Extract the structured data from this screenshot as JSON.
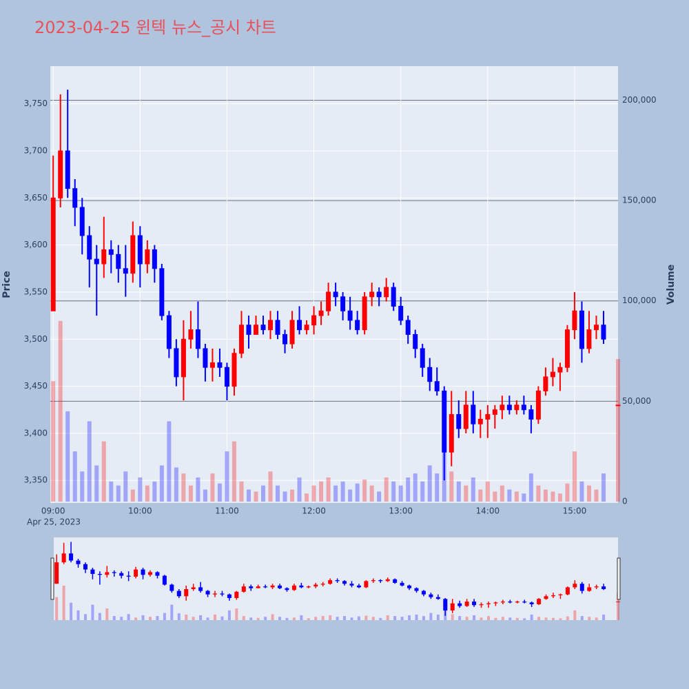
{
  "chart_data": {
    "type": "candlestick",
    "title": "2023-04-25 윈텍 뉴스_공시 차트",
    "x": [
      "09:00",
      "09:05",
      "09:10",
      "09:15",
      "09:20",
      "09:25",
      "09:30",
      "09:35",
      "09:40",
      "09:45",
      "09:50",
      "09:55",
      "10:00",
      "10:05",
      "10:10",
      "10:15",
      "10:20",
      "10:25",
      "10:30",
      "10:35",
      "10:40",
      "10:45",
      "10:50",
      "10:55",
      "11:00",
      "11:05",
      "11:10",
      "11:15",
      "11:20",
      "11:25",
      "11:30",
      "11:35",
      "11:40",
      "11:45",
      "11:50",
      "11:55",
      "12:00",
      "12:05",
      "12:10",
      "12:15",
      "12:20",
      "12:25",
      "12:30",
      "12:35",
      "12:40",
      "12:45",
      "12:50",
      "12:55",
      "13:00",
      "13:05",
      "13:10",
      "13:15",
      "13:20",
      "13:25",
      "13:30",
      "13:35",
      "13:40",
      "13:45",
      "13:50",
      "13:55",
      "14:00",
      "14:05",
      "14:10",
      "14:15",
      "14:20",
      "14:25",
      "14:30",
      "14:35",
      "14:40",
      "14:45",
      "14:50",
      "14:55",
      "15:00",
      "15:05",
      "15:10",
      "15:15",
      "15:20",
      "15:30"
    ],
    "open": [
      3530,
      3650,
      3700,
      3660,
      3640,
      3610,
      3585,
      3580,
      3595,
      3590,
      3575,
      3570,
      3610,
      3580,
      3595,
      3575,
      3525,
      3490,
      3460,
      3500,
      3510,
      3490,
      3470,
      3475,
      3470,
      3450,
      3485,
      3515,
      3505,
      3515,
      3510,
      3520,
      3505,
      3495,
      3520,
      3510,
      3515,
      3525,
      3530,
      3550,
      3545,
      3530,
      3520,
      3510,
      3545,
      3550,
      3545,
      3555,
      3535,
      3520,
      3505,
      3490,
      3470,
      3455,
      3445,
      3380,
      3420,
      3405,
      3430,
      3410,
      3415,
      3420,
      3425,
      3430,
      3425,
      3430,
      3425,
      3415,
      3445,
      3460,
      3465,
      3470,
      3510,
      3530,
      3490,
      3510,
      3515,
      3430
    ],
    "high": [
      3695,
      3760,
      3765,
      3670,
      3650,
      3620,
      3600,
      3630,
      3605,
      3600,
      3600,
      3625,
      3620,
      3605,
      3600,
      3580,
      3530,
      3500,
      3520,
      3530,
      3540,
      3495,
      3490,
      3490,
      3475,
      3490,
      3530,
      3525,
      3525,
      3525,
      3530,
      3530,
      3510,
      3530,
      3535,
      3520,
      3535,
      3540,
      3560,
      3560,
      3550,
      3545,
      3530,
      3550,
      3560,
      3555,
      3565,
      3560,
      3545,
      3525,
      3510,
      3495,
      3480,
      3470,
      3450,
      3445,
      3435,
      3445,
      3445,
      3425,
      3430,
      3430,
      3440,
      3440,
      3435,
      3440,
      3430,
      3450,
      3470,
      3480,
      3475,
      3515,
      3550,
      3540,
      3530,
      3525,
      3530,
      3430
    ],
    "low": [
      3530,
      3640,
      3650,
      3620,
      3590,
      3555,
      3525,
      3565,
      3570,
      3560,
      3545,
      3560,
      3555,
      3570,
      3560,
      3520,
      3480,
      3450,
      3435,
      3490,
      3480,
      3455,
      3455,
      3460,
      3435,
      3440,
      3480,
      3490,
      3505,
      3505,
      3500,
      3500,
      3485,
      3490,
      3505,
      3505,
      3505,
      3515,
      3525,
      3535,
      3520,
      3510,
      3505,
      3505,
      3535,
      3535,
      3540,
      3530,
      3515,
      3495,
      3480,
      3460,
      3445,
      3440,
      3350,
      3365,
      3395,
      3400,
      3400,
      3395,
      3395,
      3405,
      3415,
      3420,
      3420,
      3420,
      3400,
      3410,
      3440,
      3450,
      3445,
      3465,
      3500,
      3475,
      3485,
      3500,
      3495,
      3430
    ],
    "close": [
      3650,
      3700,
      3660,
      3640,
      3610,
      3585,
      3580,
      3595,
      3590,
      3575,
      3570,
      3610,
      3580,
      3595,
      3575,
      3525,
      3490,
      3460,
      3500,
      3510,
      3490,
      3470,
      3475,
      3470,
      3450,
      3485,
      3515,
      3505,
      3515,
      3510,
      3520,
      3505,
      3495,
      3520,
      3510,
      3515,
      3525,
      3530,
      3550,
      3545,
      3530,
      3520,
      3510,
      3545,
      3550,
      3545,
      3555,
      3535,
      3520,
      3505,
      3490,
      3470,
      3455,
      3445,
      3380,
      3420,
      3405,
      3430,
      3410,
      3415,
      3420,
      3425,
      3430,
      3425,
      3430,
      3425,
      3415,
      3445,
      3460,
      3465,
      3470,
      3510,
      3530,
      3490,
      3510,
      3515,
      3500,
      3430
    ],
    "volume": [
      60000,
      90000,
      45000,
      25000,
      15000,
      40000,
      18000,
      30000,
      10000,
      8000,
      15000,
      6000,
      12000,
      8000,
      10000,
      18000,
      40000,
      17000,
      14000,
      8000,
      12000,
      6000,
      14000,
      9000,
      25000,
      30000,
      10000,
      6000,
      5000,
      8000,
      15000,
      8000,
      5000,
      6000,
      12000,
      4000,
      8000,
      10000,
      12000,
      8000,
      10000,
      6000,
      9000,
      11000,
      8000,
      5000,
      12000,
      10000,
      8000,
      12000,
      14000,
      10000,
      18000,
      14000,
      30000,
      15000,
      10000,
      8000,
      12000,
      6000,
      10000,
      5000,
      8000,
      6000,
      5000,
      4000,
      14000,
      8000,
      6000,
      5000,
      4000,
      9000,
      25000,
      10000,
      8000,
      6000,
      14000,
      71000
    ],
    "xlim": [
      "08:58",
      "15:30"
    ],
    "xticks": [
      "09:00",
      "10:00",
      "11:00",
      "12:00",
      "13:00",
      "14:00",
      "15:00"
    ],
    "x_date_label": "Apr 25, 2023",
    "ylim": [
      3326,
      3790
    ],
    "yticks": [
      {
        "value": 3350,
        "label": "3,350"
      },
      {
        "value": 3400,
        "label": "3,400"
      },
      {
        "value": 3450,
        "label": "3,450"
      },
      {
        "value": 3500,
        "label": "3,500"
      },
      {
        "value": 3550,
        "label": "3,550"
      },
      {
        "value": 3600,
        "label": "3,600"
      },
      {
        "value": 3650,
        "label": "3,650"
      },
      {
        "value": 3700,
        "label": "3,700"
      },
      {
        "value": 3750,
        "label": "3,750"
      }
    ],
    "y2lim": [
      -700,
      217000
    ],
    "y2ticks": [
      0,
      {
        "value": 50000,
        "label": "50,000"
      },
      {
        "value": 100000,
        "label": "100,000"
      },
      {
        "value": 150000,
        "label": "150,000"
      },
      {
        "value": 200000,
        "label": "200,000"
      }
    ],
    "yaxis_title": "Price",
    "y2axis_title": "Volume",
    "increasing_color": "#ff0000",
    "decreasing_color": "#0000ff",
    "grid": true,
    "rangeslider": true
  }
}
